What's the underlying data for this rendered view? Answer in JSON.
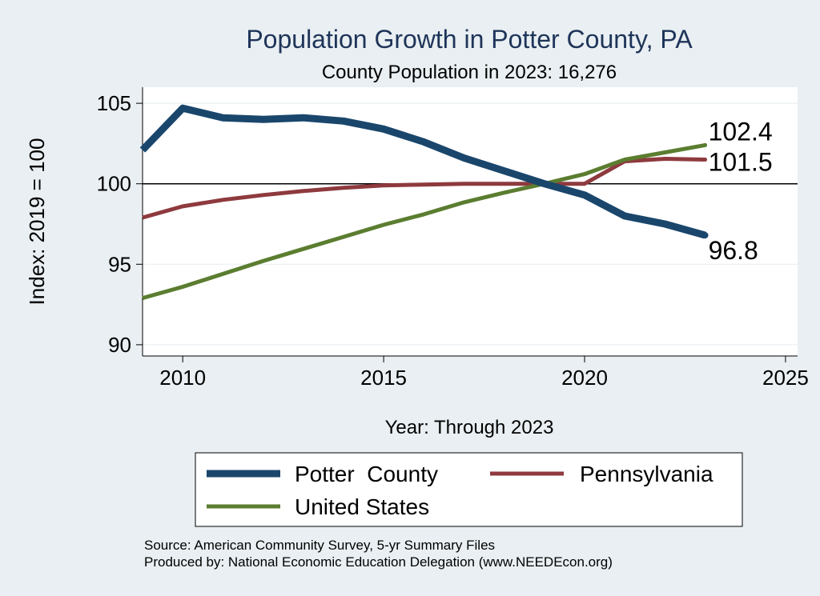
{
  "chart_data": {
    "type": "line",
    "title": "Population Growth in Potter County, PA",
    "subtitle": "County Population in 2023: 16,276",
    "xlabel": "Year: Through 2023",
    "ylabel": "Index: 2019 = 100",
    "xlim": [
      2009,
      2025.3
    ],
    "ylim": [
      89.3,
      106
    ],
    "x_ticks": [
      2010,
      2015,
      2020,
      2025
    ],
    "x_tick_labels": [
      "2010",
      "2015",
      "2020",
      "2025"
    ],
    "y_ticks": [
      90,
      95,
      100,
      105
    ],
    "y_tick_labels": [
      "90",
      "95",
      "100",
      "105"
    ],
    "reference_line": 100,
    "grid": "horizontal",
    "legend_position": "bottom",
    "colors": {
      "background": "#e9eff2",
      "plot_background": "#ffffff",
      "grid": "#e9eff2",
      "title": "#1e3459",
      "text": "#000000"
    },
    "series": [
      {
        "name": "Potter  County",
        "color": "#1a466c",
        "weight": "heavy",
        "x": [
          2009,
          2010,
          2011,
          2012,
          2013,
          2014,
          2015,
          2016,
          2017,
          2018,
          2019,
          2020,
          2021,
          2022,
          2023
        ],
        "values": [
          102.1,
          104.7,
          104.1,
          104.0,
          104.1,
          103.9,
          103.4,
          102.6,
          101.6,
          100.8,
          100.0,
          99.3,
          98.0,
          97.5,
          96.8
        ],
        "end_label": "96.8"
      },
      {
        "name": "Pennsylvania",
        "color": "#8e3a3e",
        "weight": "medium",
        "x": [
          2009,
          2010,
          2011,
          2012,
          2013,
          2014,
          2015,
          2016,
          2017,
          2018,
          2019,
          2020,
          2021,
          2022,
          2023
        ],
        "values": [
          97.9,
          98.6,
          99.0,
          99.3,
          99.55,
          99.75,
          99.9,
          99.95,
          100.0,
          100.0,
          100.0,
          100.0,
          101.4,
          101.55,
          101.5
        ],
        "end_label": "101.5"
      },
      {
        "name": "United States",
        "color": "#5b7d30",
        "weight": "medium",
        "x": [
          2009,
          2010,
          2011,
          2012,
          2013,
          2014,
          2015,
          2016,
          2017,
          2018,
          2019,
          2020,
          2021,
          2022,
          2023
        ],
        "values": [
          92.9,
          93.6,
          94.4,
          95.2,
          95.95,
          96.7,
          97.45,
          98.1,
          98.85,
          99.45,
          100.0,
          100.6,
          101.5,
          101.95,
          102.4
        ],
        "end_label": "102.4"
      }
    ],
    "notes": [
      "Source: American Community Survey, 5-yr Summary Files",
      "Produced by: National Economic Education Delegation (www.NEEDEcon.org)"
    ]
  }
}
